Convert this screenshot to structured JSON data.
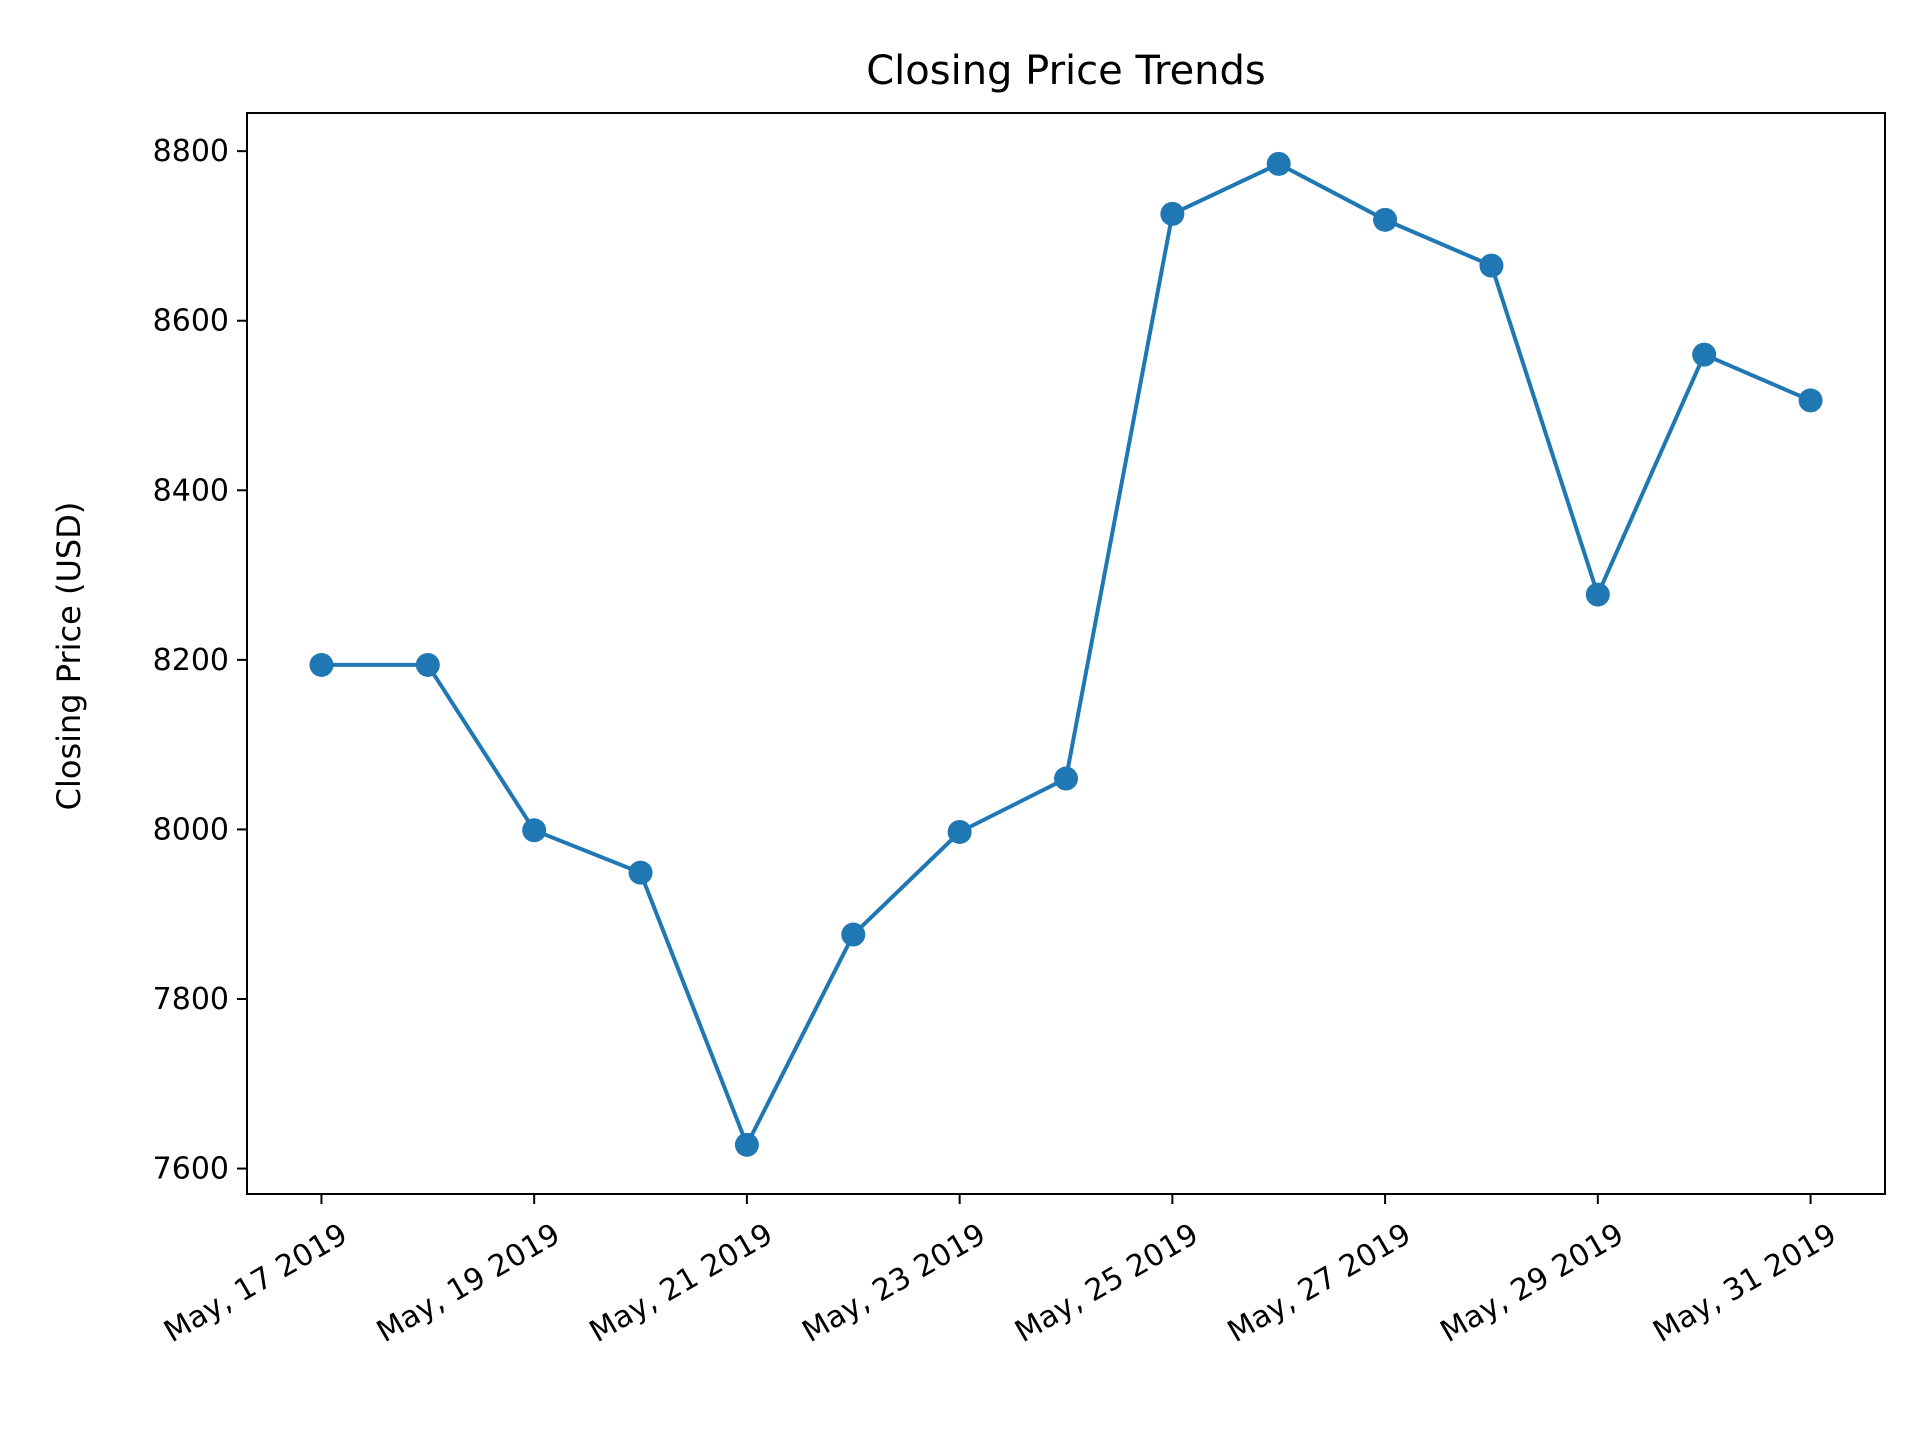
{
  "chart_data": {
    "type": "line",
    "title": "Closing Price Trends",
    "xlabel": "",
    "ylabel": "Closing Price (USD)",
    "x": [
      "2019-05-17",
      "2019-05-18",
      "2019-05-19",
      "2019-05-20",
      "2019-05-21",
      "2019-05-22",
      "2019-05-23",
      "2019-05-24",
      "2019-05-25",
      "2019-05-26",
      "2019-05-27",
      "2019-05-28",
      "2019-05-29",
      "2019-05-30",
      "2019-05-31"
    ],
    "series": [
      {
        "values": [
          8194,
          8194,
          7999,
          7949,
          7628,
          7876,
          7997,
          8060,
          8726,
          8785,
          8719,
          8665,
          8277,
          8560,
          8506
        ]
      }
    ],
    "xticks": [
      "2019-05-17",
      "2019-05-19",
      "2019-05-21",
      "2019-05-23",
      "2019-05-25",
      "2019-05-27",
      "2019-05-29",
      "2019-05-31"
    ],
    "xtick_labels": [
      "May, 17 2019",
      "May, 19 2019",
      "May, 21 2019",
      "May, 23 2019",
      "May, 25 2019",
      "May, 27 2019",
      "May, 29 2019",
      "May, 31 2019"
    ],
    "yticks": [
      7600,
      7800,
      8000,
      8200,
      8400,
      8600,
      8800
    ],
    "ylim": [
      7570,
      8845
    ],
    "grid": false,
    "color": "#1f77b4"
  }
}
